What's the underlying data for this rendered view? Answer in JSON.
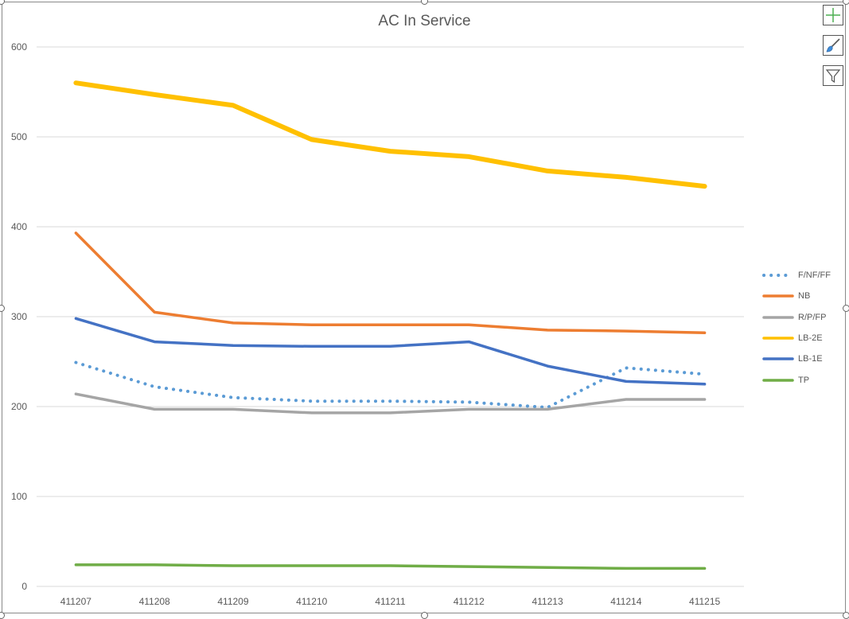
{
  "chart_data": {
    "type": "line",
    "title": "AC In Service",
    "categories": [
      "411207",
      "411208",
      "411209",
      "411210",
      "411211",
      "411212",
      "411213",
      "411214",
      "411215"
    ],
    "ylim": [
      0,
      600
    ],
    "yticks": [
      0,
      100,
      200,
      300,
      400,
      500,
      600
    ],
    "grid": true,
    "legend_position": "right",
    "series": [
      {
        "name": "F/NF/FF",
        "color": "#5B9BD5",
        "style": "dotted",
        "values": [
          249,
          222,
          210,
          206,
          206,
          205,
          199,
          243,
          236
        ]
      },
      {
        "name": "NB",
        "color": "#ED7D31",
        "style": "solid",
        "values": [
          393,
          305,
          293,
          291,
          291,
          291,
          285,
          284,
          282
        ]
      },
      {
        "name": "R/P/FP",
        "color": "#A5A5A5",
        "style": "solid",
        "values": [
          214,
          197,
          197,
          193,
          193,
          197,
          197,
          208,
          208
        ]
      },
      {
        "name": "LB-2E",
        "color": "#FFC000",
        "style": "solid",
        "values": [
          560,
          547,
          535,
          497,
          484,
          478,
          462,
          455,
          445
        ]
      },
      {
        "name": "LB-1E",
        "color": "#4472C4",
        "style": "solid",
        "values": [
          298,
          272,
          268,
          267,
          267,
          272,
          245,
          228,
          225
        ]
      },
      {
        "name": "TP",
        "color": "#70AD47",
        "style": "solid",
        "values": [
          24,
          24,
          23,
          23,
          23,
          22,
          21,
          20,
          20
        ]
      }
    ]
  },
  "side_buttons": [
    {
      "icon": "plus-icon"
    },
    {
      "icon": "paintbrush-icon"
    },
    {
      "icon": "filter-icon"
    }
  ]
}
